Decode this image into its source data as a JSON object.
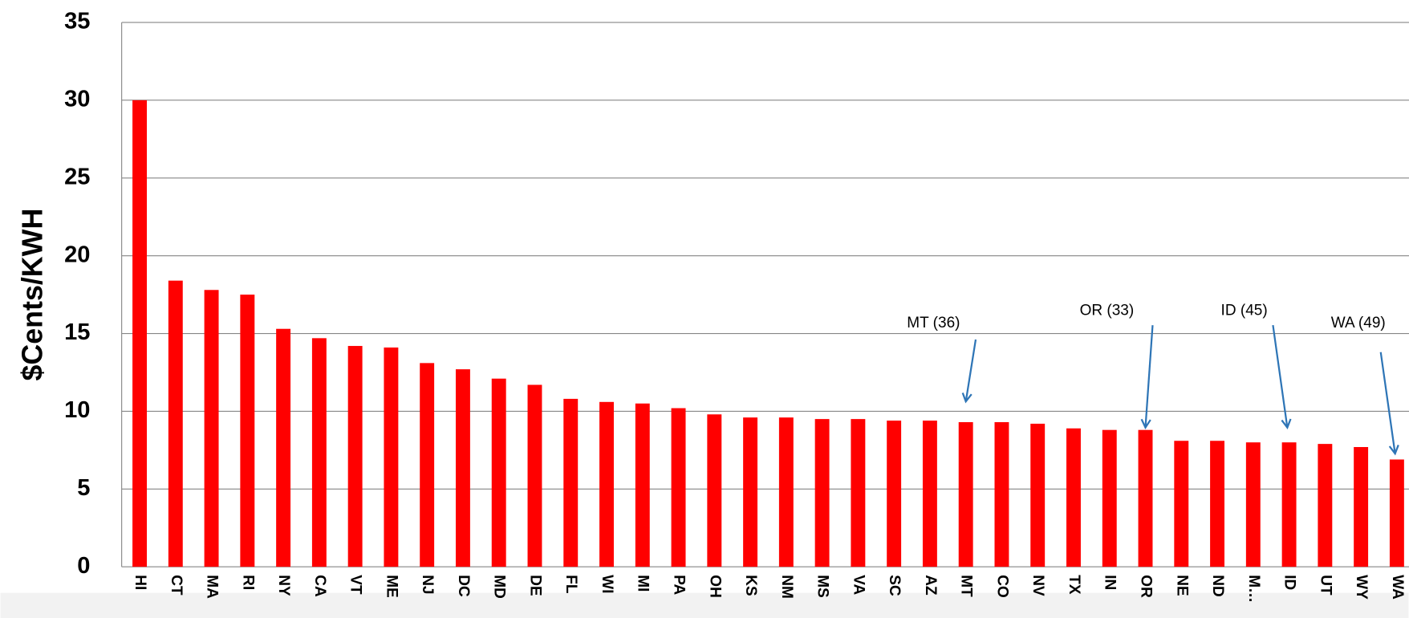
{
  "chart_data": {
    "type": "bar",
    "y_label": "$Cents/KWH",
    "categories": [
      "HI",
      "CT",
      "MA",
      "RI",
      "NY",
      "CA",
      "VT",
      "ME",
      "NJ",
      "DC",
      "MD",
      "DE",
      "FL",
      "WI",
      "MI",
      "PA",
      "OH",
      "KS",
      "NM",
      "MS",
      "VA",
      "SC",
      "AZ",
      "MT",
      "CO",
      "NV",
      "TX",
      "IN",
      "OR",
      "NE",
      "ND",
      "M…",
      "ID",
      "UT",
      "WY",
      "WA"
    ],
    "values": [
      30.0,
      18.4,
      17.8,
      17.5,
      15.3,
      14.7,
      14.2,
      14.1,
      13.1,
      12.7,
      12.1,
      11.7,
      10.8,
      10.6,
      10.5,
      10.2,
      9.8,
      9.6,
      9.6,
      9.5,
      9.5,
      9.4,
      9.4,
      9.3,
      9.3,
      9.2,
      8.9,
      8.8,
      8.8,
      8.1,
      8.1,
      8.0,
      8.0,
      7.9,
      7.7,
      6.9
    ],
    "color": "#ff0000",
    "ylim": [
      0,
      35
    ],
    "yticks": [
      0,
      5,
      10,
      15,
      20,
      25,
      30,
      35
    ],
    "grid": true,
    "annotations": [
      {
        "text": "MT (36)",
        "category": "MT"
      },
      {
        "text": "OR (33)",
        "category": "OR"
      },
      {
        "text": "ID (45)",
        "category": "ID"
      },
      {
        "text": "WA (49)",
        "category": "WA"
      }
    ],
    "annotation_color": "#2e75b6"
  }
}
